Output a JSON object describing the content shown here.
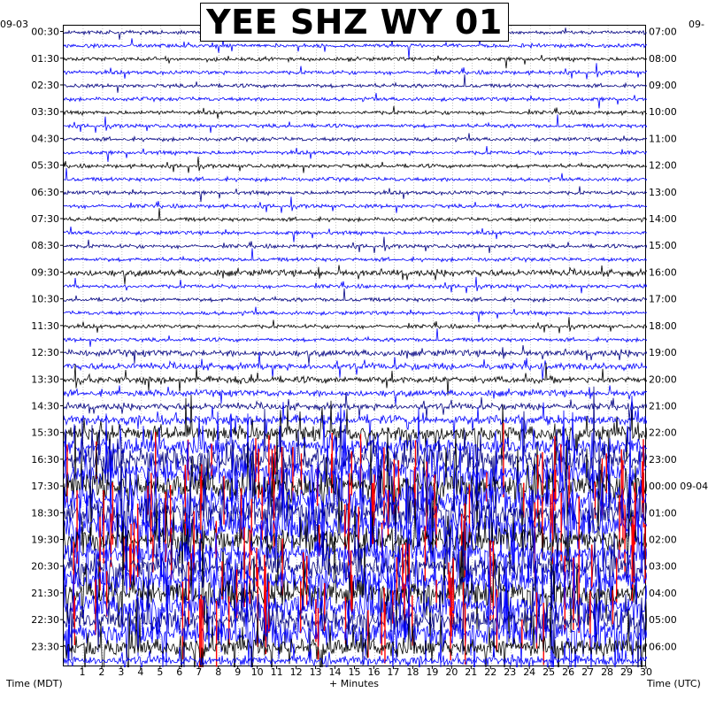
{
  "title": "YEE SHZ WY 01",
  "date_left": "09-03",
  "date_right_top": "09-",
  "colors": {
    "trace_dark": "#000080",
    "trace_blue": "#0000ff",
    "trace_black": "#000000",
    "clip": "#ff0000",
    "grid": "#000000"
  },
  "footer": {
    "left": "Time (MDT)",
    "center": "+ Minutes",
    "right": "Time (UTC)"
  },
  "chart_data": {
    "type": "helicorder",
    "x_ticks": [
      1,
      2,
      3,
      4,
      5,
      6,
      7,
      8,
      9,
      10,
      11,
      12,
      13,
      14,
      15,
      16,
      17,
      18,
      19,
      20,
      21,
      22,
      23,
      24,
      25,
      26,
      27,
      28,
      29,
      30
    ],
    "xlim": [
      0,
      30
    ],
    "xlabel": "+ Minutes",
    "ylabel_left": "Time (MDT)",
    "ylabel_right": "Time (UTC)",
    "left_labels": [
      "00:30",
      "01:30",
      "02:30",
      "03:30",
      "04:30",
      "05:30",
      "06:30",
      "07:30",
      "08:30",
      "09:30",
      "10:30",
      "11:30",
      "12:30",
      "13:30",
      "14:30",
      "15:30",
      "16:30",
      "17:30",
      "18:30",
      "19:30",
      "20:30",
      "21:30",
      "22:30",
      "23:30"
    ],
    "right_labels": [
      "07:00",
      "08:00",
      "09:00",
      "10:00",
      "11:00",
      "12:00",
      "13:00",
      "14:00",
      "15:00",
      "16:00",
      "17:00",
      "18:00",
      "19:00",
      "20:00",
      "21:00",
      "22:00",
      "23:00",
      "00:00 09-04",
      "01:00",
      "02:00",
      "03:00",
      "04:00",
      "05:00",
      "06:00"
    ],
    "rows": 48,
    "row_colors_cycle": [
      "dark",
      "blue",
      "black",
      "blue"
    ],
    "activity_by_row": [
      1,
      1,
      1,
      1,
      1,
      1,
      1,
      1,
      1,
      1,
      1,
      1,
      1,
      1,
      1,
      1,
      1,
      1,
      2,
      1,
      1,
      1,
      1,
      1,
      2,
      2,
      2,
      2,
      2,
      3,
      5,
      6,
      8,
      8,
      9,
      9,
      9,
      9,
      8,
      7,
      7,
      8,
      8,
      8,
      7,
      8,
      6,
      3
    ]
  }
}
